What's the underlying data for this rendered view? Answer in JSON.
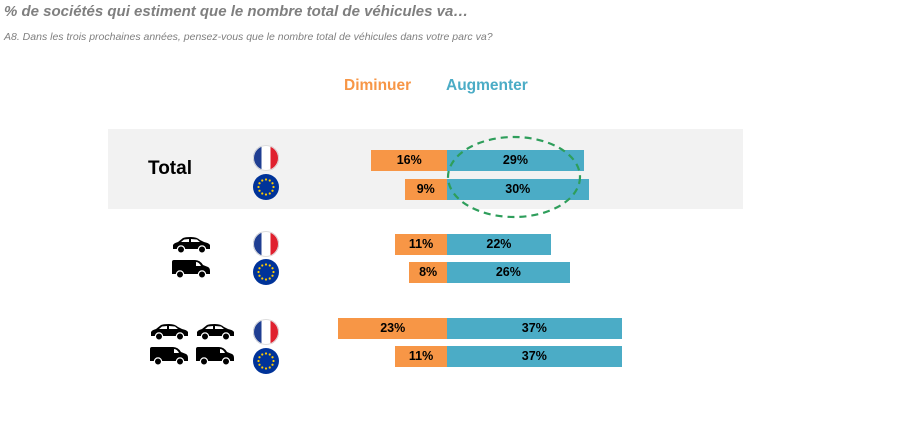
{
  "header": {
    "title": "% de sociétés qui estiment que le nombre total de véhicules va…",
    "subtitle": "A8. Dans les trois prochaines années, pensez-vous que le nombre total de véhicules dans votre parc va?"
  },
  "colors": {
    "diminuer": "#f79646",
    "augmenter": "#4bacc6",
    "band": "#f2f2f2",
    "highlight": "#2e9e5b"
  },
  "chart_data": {
    "type": "bar",
    "orientation": "horizontal-diverging",
    "series": [
      {
        "name": "Diminuer",
        "values": [
          16,
          9,
          11,
          8,
          23,
          11
        ]
      },
      {
        "name": "Augmenter",
        "values": [
          29,
          30,
          22,
          26,
          37,
          37
        ]
      }
    ],
    "groups": [
      {
        "label": "Total",
        "icon": "total",
        "rows": [
          "france-flag-icon",
          "eu-flag-icon"
        ]
      },
      {
        "label": "",
        "icon": "car-and-van-icon",
        "rows": [
          "france-flag-icon",
          "eu-flag-icon"
        ]
      },
      {
        "label": "",
        "icon": "cars-and-vans-icon",
        "rows": [
          "france-flag-icon",
          "eu-flag-icon"
        ]
      }
    ],
    "value_format": "{v}%",
    "highlight": "Total Augmenter values circled"
  }
}
